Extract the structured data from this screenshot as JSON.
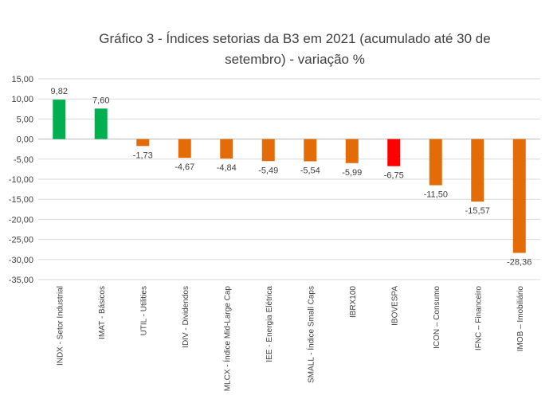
{
  "chart_data": {
    "type": "bar",
    "title": "Gráfico 3 - Índices setorias da B3 em 2021 (acumulado até 30 de setembro) - variação %",
    "categories": [
      "INDX - Setor Industrial",
      "IMAT - Básicos",
      "UTIL - Utilities",
      "IDIV - Dividendos",
      "MLCX - Índice Mid-Large Cap",
      "IEE - Energia Elétrica",
      "SMALL - Índice Small Caps",
      "IBRX100",
      "IBOVESPA",
      "ICON – Consumo",
      "IFNC – Financeiro",
      "IMOB – Imobiliário"
    ],
    "values": [
      9.82,
      7.6,
      -1.73,
      -4.67,
      -4.84,
      -5.49,
      -5.54,
      -5.99,
      -6.75,
      -11.5,
      -15.57,
      -28.36
    ],
    "data_labels": [
      "9,82",
      "7,60",
      "-1,73",
      "-4,67",
      "-4,84",
      "-5,49",
      "-5,54",
      "-5,99",
      "-6,75",
      "-11,50",
      "-15,57",
      "-28,36"
    ],
    "colors": [
      "#00B050",
      "#00B050",
      "#E36C09",
      "#E36C09",
      "#E36C09",
      "#E36C09",
      "#E36C09",
      "#E36C09",
      "#FF0000",
      "#E36C09",
      "#E36C09",
      "#E36C09"
    ],
    "ylim": [
      -35,
      15
    ],
    "yticks": [
      15,
      10,
      5,
      0,
      -5,
      -10,
      -15,
      -20,
      -25,
      -30,
      -35
    ],
    "ytick_labels": [
      "15,00",
      "10,00",
      "5,00",
      "0,00",
      "-5,00",
      "-10,00",
      "-15,00",
      "-20,00",
      "-25,00",
      "-30,00",
      "-35,00"
    ],
    "grid": true,
    "legend": "none"
  }
}
